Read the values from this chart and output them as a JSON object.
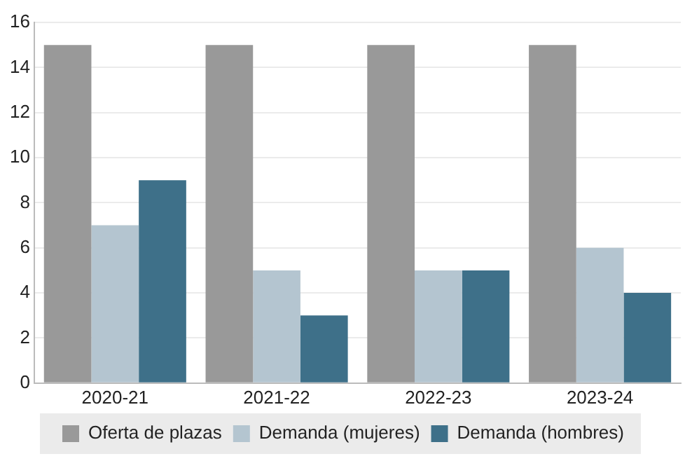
{
  "chart_data": {
    "type": "bar",
    "categories": [
      "2020-21",
      "2021-22",
      "2022-23",
      "2023-24"
    ],
    "series": [
      {
        "name": "Oferta de plazas",
        "color": "#999999",
        "values": [
          15,
          15,
          15,
          15
        ]
      },
      {
        "name": "Demanda (mujeres)",
        "color": "#b4c5d0",
        "values": [
          7,
          5,
          5,
          6
        ]
      },
      {
        "name": "Demanda (hombres)",
        "color": "#3e7089",
        "values": [
          9,
          3,
          5,
          4
        ]
      }
    ],
    "ylim": [
      0,
      16
    ],
    "yticks": [
      0,
      2,
      4,
      6,
      8,
      10,
      12,
      14,
      16
    ],
    "grid": "y",
    "legend": "bottom"
  }
}
